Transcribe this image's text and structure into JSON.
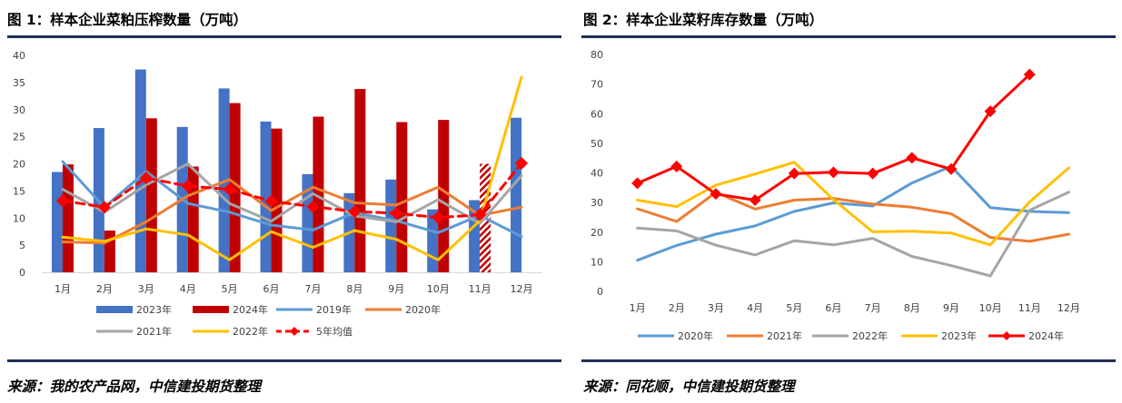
{
  "charts": [
    {
      "heading": "图 1：样本企业菜粕压榨数量（万吨）",
      "source": "来源：我的农产品网，中信建投期货整理",
      "chart_data": {
        "type": "bar",
        "title": "图 1：样本企业菜粕压榨数量（万吨）",
        "categories": [
          "1月",
          "2月",
          "3月",
          "4月",
          "5月",
          "6月",
          "7月",
          "8月",
          "9月",
          "10月",
          "11月",
          "12月"
        ],
        "ylim": [
          0,
          40
        ],
        "yticks": [
          0,
          5,
          10,
          15,
          20,
          25,
          30,
          35,
          40
        ],
        "grid": false,
        "legend": "bottom",
        "bars": [
          {
            "name": "2023年",
            "color": "#4472c4",
            "values": [
              18.5,
              26.6,
              37.4,
              26.8,
              33.9,
              27.8,
              18.1,
              14.6,
              17.1,
              11.6,
              13.3,
              28.5
            ]
          },
          {
            "name": "2024年",
            "color": "#c00000",
            "values": [
              19.9,
              7.7,
              28.4,
              19.5,
              31.2,
              26.5,
              28.7,
              33.8,
              27.7,
              28.1,
              20.0,
              null
            ],
            "hatched_index": 10
          }
        ],
        "lines": [
          {
            "name": "2019年",
            "color": "#5b9bd5",
            "values": [
              20.4,
              12.0,
              18.6,
              12.7,
              11.1,
              8.7,
              7.8,
              11.0,
              9.5,
              7.3,
              10.5,
              6.6
            ]
          },
          {
            "name": "2020年",
            "color": "#ed7d31",
            "values": [
              5.6,
              5.4,
              9.3,
              14.1,
              17.1,
              11.4,
              15.7,
              12.8,
              12.4,
              15.7,
              10.5,
              12.0
            ]
          },
          {
            "name": "2021年",
            "color": "#a5a5a5",
            "values": [
              15.3,
              11.1,
              16.1,
              20.0,
              12.7,
              9.4,
              14.5,
              10.4,
              9.3,
              13.4,
              9.0,
              17.8
            ]
          },
          {
            "name": "2022年",
            "color": "#ffc000",
            "values": [
              6.5,
              5.7,
              8.0,
              6.9,
              2.3,
              7.5,
              4.6,
              7.7,
              6.1,
              2.3,
              9.5,
              36.0
            ]
          },
          {
            "name": "5年均值",
            "color": "#ff0000",
            "dashed": true,
            "marker": "diamond",
            "values": [
              13.2,
              12.0,
              17.4,
              15.9,
              15.3,
              13.1,
              12.1,
              11.2,
              10.9,
              10.1,
              10.6,
              20.1
            ]
          }
        ]
      }
    },
    {
      "heading": "图 2：样本企业菜籽库存数量（万吨）",
      "source": "来源：同花顺，中信建投期货整理",
      "chart_data": {
        "type": "line",
        "title": "图 2：样本企业菜籽库存数量（万吨）",
        "categories": [
          "1月",
          "2月",
          "3月",
          "4月",
          "5月",
          "6月",
          "7月",
          "8月",
          "9月",
          "10月",
          "11月",
          "12月"
        ],
        "ylim": [
          0,
          80
        ],
        "yticks": [
          0,
          10,
          20,
          30,
          40,
          50,
          60,
          70,
          80
        ],
        "grid": false,
        "legend": "bottom",
        "series": [
          {
            "name": "2020年",
            "color": "#5b9bd5",
            "values": [
              10.5,
              15.5,
              19.3,
              22.1,
              27.0,
              29.9,
              28.8,
              36.6,
              42.2,
              28.3,
              27.0,
              26.6
            ]
          },
          {
            "name": "2021年",
            "color": "#ed7d31",
            "values": [
              27.9,
              23.6,
              33.4,
              27.8,
              30.8,
              31.4,
              29.5,
              28.4,
              26.2,
              18.2,
              16.9,
              19.3
            ]
          },
          {
            "name": "2022年",
            "color": "#a5a5a5",
            "values": [
              21.4,
              20.4,
              15.6,
              12.3,
              17.1,
              15.7,
              17.9,
              11.8,
              8.7,
              5.2,
              27.4,
              33.5
            ]
          },
          {
            "name": "2023年",
            "color": "#ffc000",
            "values": [
              30.8,
              28.6,
              35.9,
              39.6,
              43.6,
              31.0,
              20.1,
              20.3,
              19.7,
              15.7,
              30.2,
              41.7
            ]
          },
          {
            "name": "2024年",
            "color": "#ff0000",
            "marker": "diamond",
            "values": [
              36.5,
              42.2,
              32.9,
              30.8,
              39.8,
              40.2,
              39.8,
              45.1,
              41.3,
              60.8,
              73.2,
              null
            ]
          }
        ]
      }
    }
  ]
}
